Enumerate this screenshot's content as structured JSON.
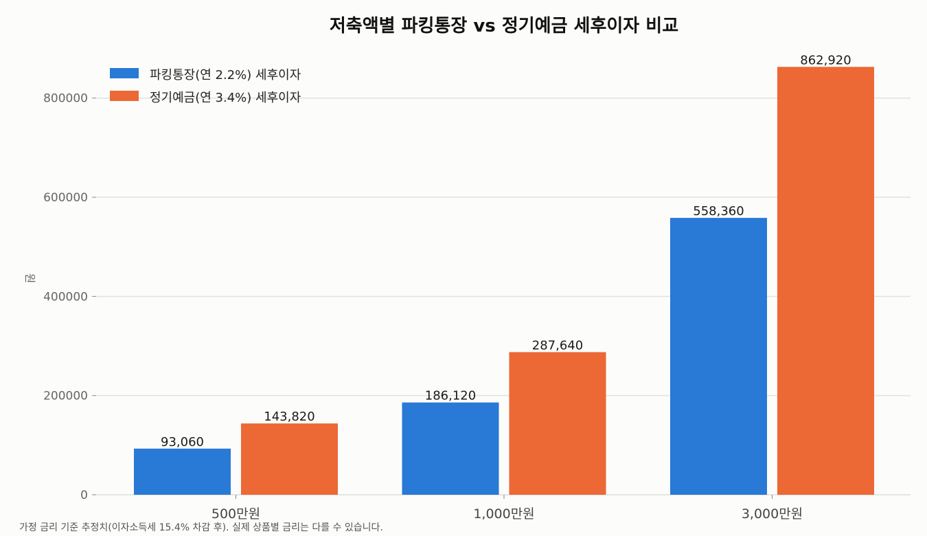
{
  "chart_data": {
    "type": "bar",
    "title": "저축액별 파킹통장 vs 정기예금 세후이자 비교",
    "categories": [
      "500만원",
      "1,000만원",
      "3,000만원"
    ],
    "series": [
      {
        "name": "파킹통장(연 2.2%) 세후이자",
        "color": "#2979d6",
        "values": [
          93060,
          186120,
          558360
        ]
      },
      {
        "name": "정기예금(연 3.4%) 세후이자",
        "color": "#ec6835",
        "values": [
          143820,
          287640,
          862920
        ]
      }
    ],
    "data_labels": [
      [
        "93,060",
        "186,120",
        "558,360"
      ],
      [
        "143,820",
        "287,640",
        "862,920"
      ]
    ],
    "xlabel": "",
    "ylabel": "원",
    "ylim": [
      0,
      880000
    ],
    "yticks": [
      0,
      200000,
      400000,
      600000,
      800000
    ],
    "ytick_labels": [
      "0",
      "200000",
      "400000",
      "600000",
      "800000"
    ],
    "grid": "y",
    "legend": "top-left",
    "footnote": "가정 금리 기준 추정치(이자소득세 15.4% 차감 후). 실제 상품별 금리는 다를 수 있습니다."
  }
}
